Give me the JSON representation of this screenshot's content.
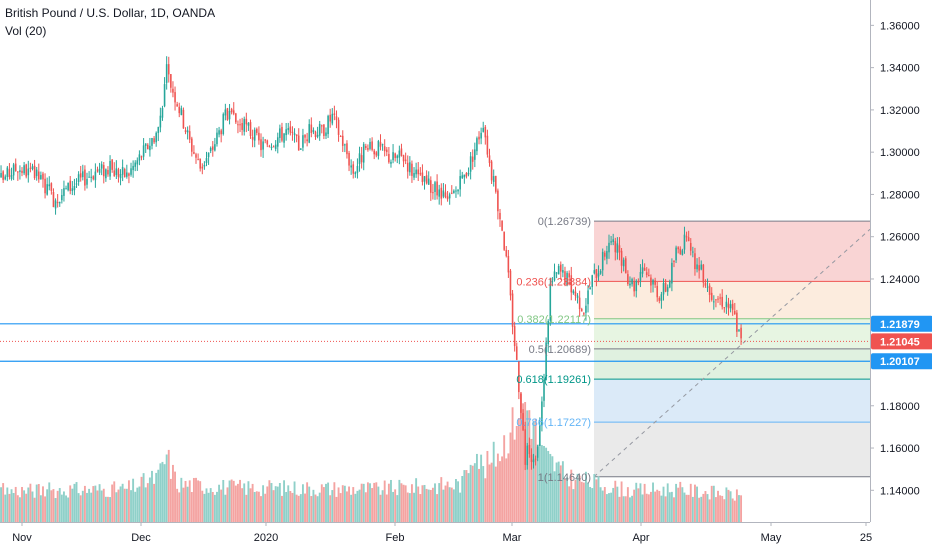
{
  "header": {
    "symbol_title": "British Pound / U.S. Dollar, 1D, OANDA",
    "indicator_label": "Vol (20)"
  },
  "price_axis": {
    "ticks": [
      "1.36000",
      "1.34000",
      "1.32000",
      "1.30000",
      "1.28000",
      "1.26000",
      "1.24000",
      "1.22000",
      "1.20000",
      "1.18000",
      "1.16000",
      "1.14000"
    ],
    "badges": [
      {
        "label": "1.21879",
        "color": "#2196f3"
      },
      {
        "label": "1.21045",
        "color": "#ef5350"
      },
      {
        "label": "1.20107",
        "color": "#2196f3"
      }
    ]
  },
  "time_axis": {
    "ticks": [
      "Nov",
      "Dec",
      "2020",
      "Feb",
      "Mar",
      "Apr",
      "May",
      "25"
    ]
  },
  "fib_labels": [
    {
      "text": "0(1.26739)",
      "color": "#787b86"
    },
    {
      "text": "0.236(1.23884)",
      "color": "#ef5350"
    },
    {
      "text": "0.382(1.22117)",
      "color": "#81c784"
    },
    {
      "text": "0.5(1.20689)",
      "color": "#787b86"
    },
    {
      "text": "0.618(1.19261)",
      "color": "#009688"
    },
    {
      "text": "0.786(1.17227)",
      "color": "#64b5f6"
    },
    {
      "text": "1(1.14640)",
      "color": "#787b86"
    }
  ],
  "colors": {
    "up": "#26a69a",
    "down": "#ef5350",
    "vol_up": "#8fd0c9",
    "vol_down": "#f4a3a1",
    "hline": "#2196f3"
  },
  "chart_data": {
    "type": "candlestick",
    "title": "British Pound / U.S. Dollar, 1D, OANDA",
    "indicator": "Vol (20)",
    "ylim": [
      1.125,
      1.372
    ],
    "y_scale": "linear",
    "grid": false,
    "x_tick_labels": [
      "Nov",
      "Dec",
      "2020",
      "Feb",
      "Mar",
      "Apr",
      "May",
      "25"
    ],
    "horizontal_lines": [
      1.21879,
      1.20107
    ],
    "last_price": 1.21045,
    "fibonacci_retracement": {
      "high": 1.26739,
      "low": 1.1464,
      "levels": [
        {
          "ratio": 0,
          "price": 1.26739
        },
        {
          "ratio": 0.236,
          "price": 1.23884
        },
        {
          "ratio": 0.382,
          "price": 1.22117
        },
        {
          "ratio": 0.5,
          "price": 1.20689
        },
        {
          "ratio": 0.618,
          "price": 1.19261
        },
        {
          "ratio": 0.786,
          "price": 1.17227
        },
        {
          "ratio": 1,
          "price": 1.1464
        }
      ]
    },
    "close_path": [
      [
        0,
        1.287
      ],
      [
        8,
        1.293
      ],
      [
        18,
        1.288
      ],
      [
        25,
        1.278
      ],
      [
        35,
        1.285
      ],
      [
        45,
        1.291
      ],
      [
        52,
        1.292
      ],
      [
        60,
        1.289
      ],
      [
        70,
        1.303
      ],
      [
        75,
        1.311
      ],
      [
        79,
        1.338
      ],
      [
        84,
        1.324
      ],
      [
        90,
        1.305
      ],
      [
        95,
        1.293
      ],
      [
        100,
        1.3
      ],
      [
        107,
        1.317
      ],
      [
        112,
        1.314
      ],
      [
        118,
        1.311
      ],
      [
        124,
        1.303
      ],
      [
        130,
        1.306
      ],
      [
        136,
        1.31
      ],
      [
        142,
        1.303
      ],
      [
        148,
        1.311
      ],
      [
        153,
        1.31
      ],
      [
        158,
        1.317
      ],
      [
        163,
        1.305
      ],
      [
        168,
        1.291
      ],
      [
        173,
        1.3
      ],
      [
        180,
        1.302
      ],
      [
        186,
        1.297
      ],
      [
        192,
        1.298
      ],
      [
        198,
        1.288
      ],
      [
        203,
        1.285
      ],
      [
        208,
        1.281
      ],
      [
        213,
        1.276
      ],
      [
        218,
        1.283
      ],
      [
        223,
        1.293
      ],
      [
        227,
        1.305
      ],
      [
        230,
        1.315
      ],
      [
        233,
        1.295
      ],
      [
        236,
        1.28
      ],
      [
        239,
        1.265
      ],
      [
        242,
        1.24
      ],
      [
        245,
        1.21
      ],
      [
        248,
        1.18
      ],
      [
        250,
        1.155
      ],
      [
        252,
        1.16
      ],
      [
        255,
        1.151
      ],
      [
        258,
        1.18
      ],
      [
        262,
        1.237
      ],
      [
        266,
        1.244
      ],
      [
        270,
        1.24
      ],
      [
        274,
        1.233
      ],
      [
        278,
        1.226
      ],
      [
        282,
        1.24
      ],
      [
        286,
        1.247
      ],
      [
        290,
        1.258
      ],
      [
        294,
        1.253
      ],
      [
        298,
        1.243
      ],
      [
        302,
        1.237
      ],
      [
        306,
        1.247
      ],
      [
        310,
        1.24
      ],
      [
        314,
        1.233
      ],
      [
        318,
        1.237
      ],
      [
        322,
        1.253
      ],
      [
        326,
        1.258
      ],
      [
        330,
        1.25
      ],
      [
        334,
        1.243
      ],
      [
        338,
        1.235
      ],
      [
        342,
        1.231
      ],
      [
        346,
        1.229
      ],
      [
        350,
        1.222
      ],
      [
        353,
        1.21
      ]
    ],
    "volume_path": [
      [
        0,
        0.18
      ],
      [
        60,
        0.19
      ],
      [
        75,
        0.26
      ],
      [
        79,
        0.38
      ],
      [
        84,
        0.22
      ],
      [
        110,
        0.2
      ],
      [
        180,
        0.19
      ],
      [
        220,
        0.22
      ],
      [
        226,
        0.45
      ],
      [
        230,
        0.3
      ],
      [
        238,
        0.42
      ],
      [
        244,
        0.55
      ],
      [
        248,
        0.72
      ],
      [
        252,
        0.65
      ],
      [
        258,
        0.4
      ],
      [
        270,
        0.26
      ],
      [
        300,
        0.18
      ],
      [
        320,
        0.19
      ],
      [
        340,
        0.17
      ],
      [
        353,
        0.15
      ]
    ]
  }
}
